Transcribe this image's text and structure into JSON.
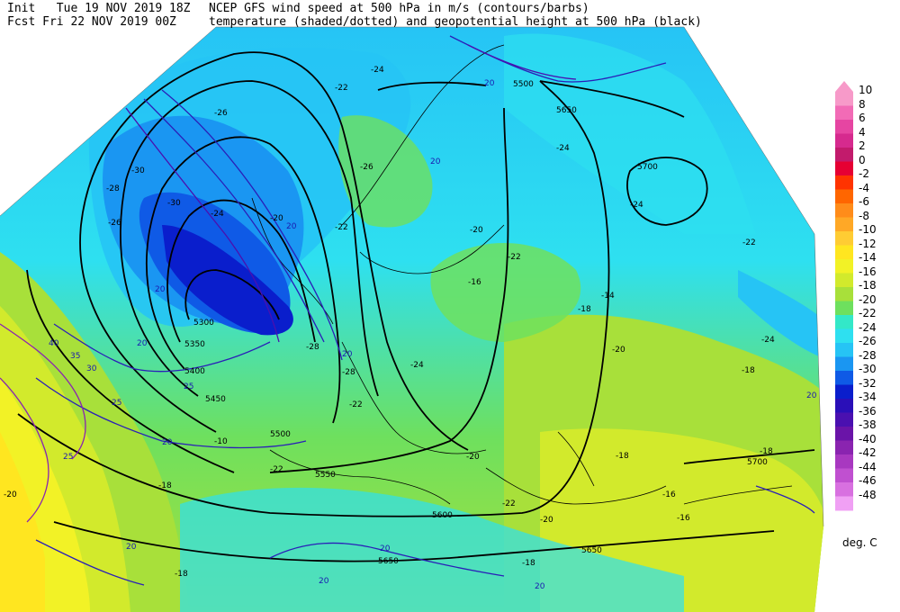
{
  "header": {
    "init_label": "Init",
    "init_time": "Tue 19 NOV 2019 18Z",
    "fcst_label": "Fcst",
    "fcst_time": "Fri 22 NOV 2019 00Z",
    "product_line1": "NCEP GFS wind speed at 500 hPa in m/s (contours/barbs)",
    "product_line2": "temperature (shaded/dotted) and geopotential height at 500 hPa (black)"
  },
  "colorbar": {
    "unit": "deg. C",
    "levels": [
      {
        "label": "10",
        "color": "#f79ac9"
      },
      {
        "label": "8",
        "color": "#f26bb6"
      },
      {
        "label": "6",
        "color": "#e645a2"
      },
      {
        "label": "4",
        "color": "#d62a8e"
      },
      {
        "label": "2",
        "color": "#c21b6c"
      },
      {
        "label": "0",
        "color": "#e60033"
      },
      {
        "label": "-2",
        "color": "#ff3300"
      },
      {
        "label": "-4",
        "color": "#ff6600"
      },
      {
        "label": "-6",
        "color": "#ff8c1a"
      },
      {
        "label": "-8",
        "color": "#ffa826"
      },
      {
        "label": "-10",
        "color": "#ffcc33"
      },
      {
        "label": "-12",
        "color": "#ffe620"
      },
      {
        "label": "-14",
        "color": "#f2f226"
      },
      {
        "label": "-16",
        "color": "#d2ea2c"
      },
      {
        "label": "-18",
        "color": "#a8e03a"
      },
      {
        "label": "-20",
        "color": "#6ee05e"
      },
      {
        "label": "-22",
        "color": "#33e8c8"
      },
      {
        "label": "-24",
        "color": "#2ee0f0"
      },
      {
        "label": "-26",
        "color": "#26c4f5"
      },
      {
        "label": "-28",
        "color": "#1a96f2"
      },
      {
        "label": "-30",
        "color": "#0f5ae6"
      },
      {
        "label": "-32",
        "color": "#0a1ecc"
      },
      {
        "label": "-34",
        "color": "#2a0fb8"
      },
      {
        "label": "-36",
        "color": "#4a10b0"
      },
      {
        "label": "-38",
        "color": "#6a14a8"
      },
      {
        "label": "-40",
        "color": "#8a24b0"
      },
      {
        "label": "-42",
        "color": "#a838c0"
      },
      {
        "label": "-44",
        "color": "#c050d0"
      },
      {
        "label": "-46",
        "color": "#d870e0"
      },
      {
        "label": "-48",
        "color": "#f0a0f4"
      }
    ]
  },
  "map": {
    "height_labels": [
      "5300",
      "5350",
      "5400",
      "5450",
      "5500",
      "5550",
      "5600",
      "5650",
      "5700",
      "5700",
      "5500",
      "5650",
      "5650"
    ],
    "temp_labels": [
      "-30",
      "-28",
      "-26",
      "-24",
      "-22",
      "-20",
      "-18",
      "-16",
      "-14",
      "-20",
      "-22",
      "-24",
      "-26",
      "-28",
      "-30",
      "-22",
      "-18",
      "-16",
      "-18",
      "-20",
      "-22",
      "-24",
      "-10",
      "-18",
      "-20",
      "-22",
      "-28",
      "-26",
      "-24",
      "-22",
      "-18",
      "-16",
      "-20",
      "-24",
      "-18",
      "-20",
      "-22",
      "-24",
      "-18"
    ],
    "wind_labels": [
      "20",
      "25",
      "30",
      "35",
      "40",
      "20",
      "25",
      "20",
      "20",
      "20",
      "20",
      "20",
      "20",
      "20",
      "25",
      "20",
      "20",
      "20"
    ]
  }
}
